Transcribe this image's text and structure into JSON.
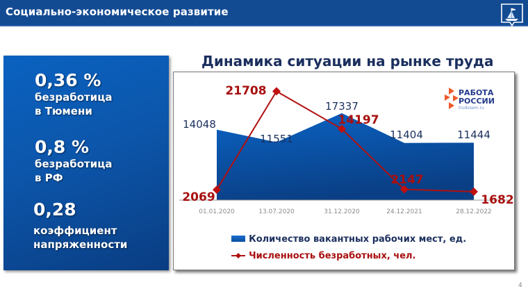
{
  "header": {
    "title": "Социально-экономическое развитие",
    "crest_icon": "city-crest-ship-icon"
  },
  "left_panel": {
    "stats": [
      {
        "value": "0,36 %",
        "label_lines": [
          "безработица",
          "в Тюмени"
        ]
      },
      {
        "value": "0,8 %",
        "label_lines": [
          "безработица",
          "в РФ"
        ]
      },
      {
        "value": "0,28",
        "label_lines": [
          "коэффициент",
          "напряженности"
        ]
      }
    ]
  },
  "logo": {
    "line1": "РАБОТА",
    "line2": "РОССИИ",
    "url": "trudvsem.ru"
  },
  "page_number": "4",
  "colors": {
    "header": "#134b93",
    "area": "#0d5cb8",
    "line": "#b01010",
    "title": "#1b2f5e"
  },
  "chart_data": {
    "type": "area+line",
    "title": "Динамика ситуации на рынке труда",
    "categories": [
      "01.01.2020",
      "13.07.2020",
      "31.12.2020",
      "24.12.2021",
      "28.12.2022"
    ],
    "series": [
      {
        "name": "Количество вакантных рабочих мест, ед.",
        "type": "area",
        "color": "#0d5cb8",
        "values": [
          14048,
          11551,
          17337,
          11404,
          11444
        ]
      },
      {
        "name": "Численность безработных, чел.",
        "type": "line",
        "color": "#b01010",
        "marker": "diamond",
        "values": [
          2069,
          21708,
          14197,
          2147,
          1682
        ]
      }
    ],
    "xlabel": "",
    "ylabel": "",
    "grid": false,
    "legend_position": "bottom",
    "data_labels": true
  }
}
